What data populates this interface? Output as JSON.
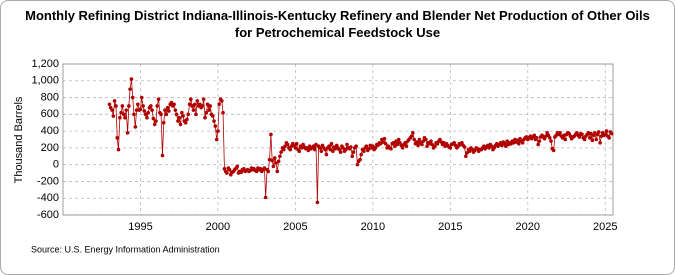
{
  "chart_data": {
    "type": "line",
    "title": "Monthly Refining District Indiana-Illinois-Kentucky Refinery and Blender Net Production of Other Oils for Petrochemical Feedstock Use",
    "y_label": "Thousand Barrels",
    "source": "Source: U.S. Energy Information Administration",
    "color": "#b00000",
    "grid": true,
    "xlim": [
      1990,
      2025.5
    ],
    "xticks": [
      1995,
      2000,
      2005,
      2010,
      2015,
      2020,
      2025
    ],
    "ylim": [
      -600,
      1200
    ],
    "yticks": [
      -600,
      -400,
      -200,
      0,
      200,
      400,
      600,
      800,
      {
        "value": 1000,
        "label": "1,000"
      },
      {
        "value": 1200,
        "label": "1,200"
      }
    ],
    "x": [
      1993,
      1993.08,
      1993.17,
      1993.25,
      1993.33,
      1993.42,
      1993.5,
      1993.58,
      1993.67,
      1993.75,
      1993.83,
      1993.92,
      1994,
      1994.08,
      1994.17,
      1994.25,
      1994.33,
      1994.42,
      1994.5,
      1994.58,
      1994.67,
      1994.75,
      1994.83,
      1994.92,
      1995,
      1995.08,
      1995.17,
      1995.25,
      1995.33,
      1995.42,
      1995.5,
      1995.58,
      1995.67,
      1995.75,
      1995.83,
      1995.92,
      1996,
      1996.08,
      1996.17,
      1996.25,
      1996.33,
      1996.42,
      1996.5,
      1996.58,
      1996.67,
      1996.75,
      1996.83,
      1996.92,
      1997,
      1997.08,
      1997.17,
      1997.25,
      1997.33,
      1997.42,
      1997.5,
      1997.58,
      1997.67,
      1997.75,
      1997.83,
      1997.92,
      1998,
      1998.08,
      1998.17,
      1998.25,
      1998.33,
      1998.42,
      1998.5,
      1998.58,
      1998.67,
      1998.75,
      1998.83,
      1998.92,
      1999,
      1999.08,
      1999.17,
      1999.25,
      1999.33,
      1999.42,
      1999.5,
      1999.58,
      1999.67,
      1999.75,
      1999.83,
      1999.92,
      2000,
      2000.08,
      2000.17,
      2000.25,
      2000.33,
      2000.42,
      2000.5,
      2000.58,
      2000.67,
      2000.75,
      2000.83,
      2000.92,
      2001,
      2001.08,
      2001.17,
      2001.25,
      2001.33,
      2001.42,
      2001.5,
      2001.58,
      2001.67,
      2001.75,
      2001.83,
      2001.92,
      2002,
      2002.08,
      2002.17,
      2002.25,
      2002.33,
      2002.42,
      2002.5,
      2002.58,
      2002.67,
      2002.75,
      2002.83,
      2002.92,
      2003,
      2003.08,
      2003.17,
      2003.25,
      2003.33,
      2003.42,
      2003.5,
      2003.58,
      2003.67,
      2003.75,
      2003.83,
      2003.92,
      2004,
      2004.08,
      2004.17,
      2004.25,
      2004.33,
      2004.42,
      2004.5,
      2004.58,
      2004.67,
      2004.75,
      2004.83,
      2004.92,
      2005,
      2005.08,
      2005.17,
      2005.25,
      2005.33,
      2005.42,
      2005.5,
      2005.58,
      2005.67,
      2005.75,
      2005.83,
      2005.92,
      2006,
      2006.08,
      2006.17,
      2006.25,
      2006.33,
      2006.42,
      2006.5,
      2006.58,
      2006.67,
      2006.75,
      2006.83,
      2006.92,
      2007,
      2007.08,
      2007.17,
      2007.25,
      2007.33,
      2007.42,
      2007.5,
      2007.58,
      2007.67,
      2007.75,
      2007.83,
      2007.92,
      2008,
      2008.08,
      2008.17,
      2008.25,
      2008.33,
      2008.42,
      2008.5,
      2008.58,
      2008.67,
      2008.75,
      2008.83,
      2008.92,
      2009,
      2009.08,
      2009.17,
      2009.25,
      2009.33,
      2009.42,
      2009.5,
      2009.58,
      2009.67,
      2009.75,
      2009.83,
      2009.92,
      2010,
      2010.08,
      2010.17,
      2010.25,
      2010.33,
      2010.42,
      2010.5,
      2010.58,
      2010.67,
      2010.75,
      2010.83,
      2010.92,
      2011,
      2011.08,
      2011.17,
      2011.25,
      2011.33,
      2011.42,
      2011.5,
      2011.58,
      2011.67,
      2011.75,
      2011.83,
      2011.92,
      2012,
      2012.08,
      2012.17,
      2012.25,
      2012.33,
      2012.42,
      2012.5,
      2012.58,
      2012.67,
      2012.75,
      2012.83,
      2012.92,
      2013,
      2013.08,
      2013.17,
      2013.25,
      2013.33,
      2013.42,
      2013.5,
      2013.58,
      2013.67,
      2013.75,
      2013.83,
      2013.92,
      2014,
      2014.08,
      2014.17,
      2014.25,
      2014.33,
      2014.42,
      2014.5,
      2014.58,
      2014.67,
      2014.75,
      2014.83,
      2014.92,
      2015,
      2015.08,
      2015.17,
      2015.25,
      2015.33,
      2015.42,
      2015.5,
      2015.58,
      2015.67,
      2015.75,
      2015.83,
      2015.92,
      2016,
      2016.08,
      2016.17,
      2016.25,
      2016.33,
      2016.42,
      2016.5,
      2016.58,
      2016.67,
      2016.75,
      2016.83,
      2016.92,
      2017,
      2017.08,
      2017.17,
      2017.25,
      2017.33,
      2017.42,
      2017.5,
      2017.58,
      2017.67,
      2017.75,
      2017.83,
      2017.92,
      2018,
      2018.08,
      2018.17,
      2018.25,
      2018.33,
      2018.42,
      2018.5,
      2018.58,
      2018.67,
      2018.75,
      2018.83,
      2018.92,
      2019,
      2019.08,
      2019.17,
      2019.25,
      2019.33,
      2019.42,
      2019.5,
      2019.58,
      2019.67,
      2019.75,
      2019.83,
      2019.92,
      2020,
      2020.08,
      2020.17,
      2020.25,
      2020.33,
      2020.42,
      2020.5,
      2020.58,
      2020.67,
      2020.75,
      2020.83,
      2020.92,
      2021,
      2021.08,
      2021.17,
      2021.25,
      2021.33,
      2021.42,
      2021.5,
      2021.58,
      2021.67,
      2021.75,
      2021.83,
      2021.92,
      2022,
      2022.08,
      2022.17,
      2022.25,
      2022.33,
      2022.42,
      2022.5,
      2022.58,
      2022.67,
      2022.75,
      2022.83,
      2022.92,
      2023,
      2023.08,
      2023.17,
      2023.25,
      2023.33,
      2023.42,
      2023.5,
      2023.58,
      2023.67,
      2023.75,
      2023.83,
      2023.92,
      2024,
      2024.08,
      2024.17,
      2024.25,
      2024.33,
      2024.42,
      2024.5,
      2024.58,
      2024.67,
      2024.75,
      2024.83,
      2024.92,
      2025,
      2025.08,
      2025.17,
      2025.25,
      2025.33,
      2025.42
    ],
    "values": [
      720,
      680,
      650,
      580,
      760,
      700,
      320,
      180,
      560,
      620,
      700,
      600,
      560,
      650,
      380,
      700,
      900,
      1020,
      800,
      600,
      450,
      650,
      720,
      650,
      660,
      800,
      700,
      640,
      600,
      560,
      620,
      680,
      700,
      650,
      550,
      480,
      520,
      700,
      780,
      620,
      600,
      110,
      500,
      650,
      600,
      680,
      640,
      720,
      740,
      700,
      720,
      650,
      600,
      520,
      560,
      480,
      620,
      580,
      520,
      500,
      540,
      600,
      720,
      780,
      700,
      650,
      720,
      600,
      760,
      700,
      720,
      680,
      700,
      780,
      560,
      620,
      720,
      650,
      700,
      600,
      580,
      520,
      460,
      300,
      400,
      720,
      780,
      760,
      620,
      -50,
      -80,
      -100,
      -40,
      -60,
      -120,
      -90,
      -80,
      -60,
      -40,
      -20,
      -100,
      -80,
      -90,
      -60,
      -50,
      -80,
      -70,
      -60,
      -80,
      -70,
      -40,
      -60,
      -50,
      -70,
      -80,
      -40,
      -60,
      -50,
      -80,
      -60,
      -40,
      -390,
      -60,
      -80,
      60,
      360,
      50,
      -20,
      80,
      20,
      -80,
      40,
      100,
      150,
      200,
      180,
      220,
      260,
      240,
      200,
      180,
      220,
      250,
      230,
      200,
      250,
      180,
      160,
      220,
      200,
      240,
      210,
      190,
      200,
      170,
      220,
      190,
      200,
      220,
      180,
      240,
      -450,
      220,
      200,
      160,
      230,
      200,
      180,
      120,
      200,
      220,
      180,
      250,
      160,
      210,
      190,
      230,
      200,
      180,
      150,
      220,
      200,
      160,
      180,
      240,
      200,
      190,
      210,
      100,
      150,
      200,
      220,
      0,
      40,
      60,
      120,
      180,
      160,
      200,
      220,
      170,
      190,
      230,
      200,
      220,
      180,
      200,
      240,
      230,
      260,
      250,
      300,
      270,
      310,
      250,
      200,
      220,
      200,
      190,
      250,
      260,
      220,
      280,
      240,
      300,
      260,
      230,
      200,
      240,
      260,
      220,
      280,
      300,
      320,
      340,
      380,
      300,
      250,
      270,
      230,
      300,
      260,
      240,
      280,
      320,
      300,
      220,
      260,
      250,
      280,
      240,
      200,
      220,
      260,
      250,
      280,
      300,
      270,
      240,
      260,
      220,
      250,
      230,
      210,
      200,
      240,
      250,
      260,
      230,
      200,
      220,
      250,
      240,
      260,
      230,
      210,
      100,
      140,
      180,
      160,
      200,
      180,
      150,
      170,
      200,
      190,
      160,
      180,
      180,
      200,
      220,
      190,
      210,
      230,
      200,
      240,
      220,
      180,
      200,
      230,
      250,
      220,
      240,
      260,
      230,
      270,
      250,
      220,
      280,
      240,
      260,
      250,
      280,
      260,
      300,
      270,
      290,
      250,
      310,
      280,
      260,
      300,
      320,
      330,
      300,
      320,
      340,
      310,
      330,
      350,
      300,
      320,
      240,
      280,
      330,
      350,
      330,
      310,
      340,
      380,
      350,
      320,
      280,
      190,
      170,
      330,
      350,
      380,
      360,
      380,
      340,
      320,
      350,
      300,
      360,
      380,
      370,
      340,
      310,
      330,
      340,
      360,
      380,
      350,
      330,
      370,
      360,
      320,
      300,
      340,
      360,
      380,
      320,
      370,
      290,
      350,
      380,
      300,
      360,
      390,
      260,
      340,
      380,
      350,
      360,
      400,
      340,
      320,
      390,
      370
    ]
  }
}
